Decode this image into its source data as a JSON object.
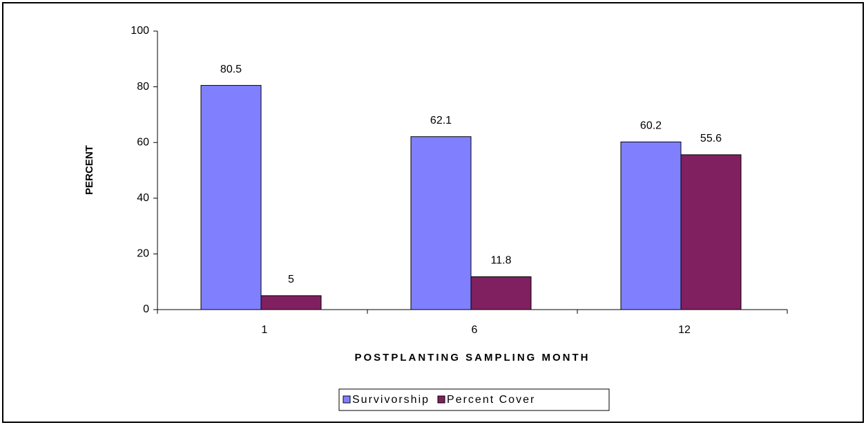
{
  "chart_data": {
    "type": "bar",
    "categories": [
      "1",
      "6",
      "12"
    ],
    "series": [
      {
        "name": "Survivorship",
        "color": "#8080ff",
        "values": [
          80.5,
          62.1,
          60.2
        ]
      },
      {
        "name": "Percent Cover",
        "color": "#802060",
        "values": [
          5,
          11.8,
          55.6
        ]
      }
    ],
    "ylim": [
      0,
      100
    ],
    "yticks": [
      0,
      20,
      40,
      60,
      80,
      100
    ],
    "ylabel": "PERCENT",
    "xlabel": "POSTPLANTING SAMPLING MONTH",
    "grid": false,
    "legend": "bottom"
  }
}
